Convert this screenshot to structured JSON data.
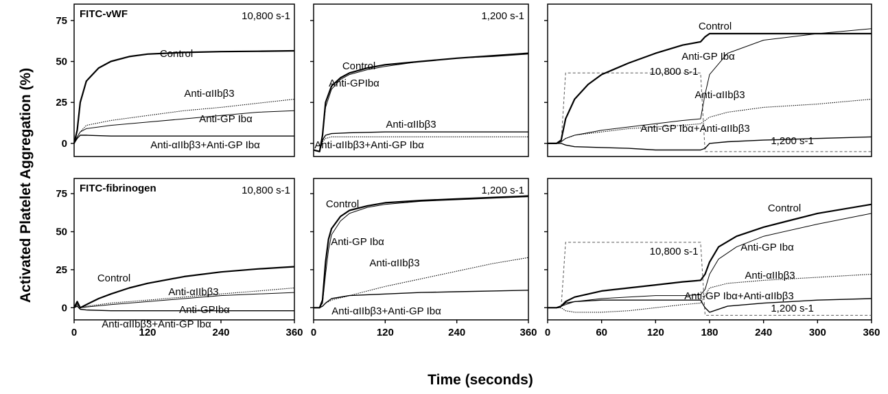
{
  "figure": {
    "ylabel": "Activated Platelet Aggregation (%)",
    "xlabel": "Time (seconds)"
  },
  "chart_data": [
    {
      "type": "line",
      "title": "FITC-vWF",
      "shear_label": "10,800 s-1",
      "xlim": [
        0,
        360
      ],
      "ylim": [
        -8,
        85
      ],
      "xticks": [],
      "yticks": [
        "0",
        "25",
        "50",
        "75"
      ],
      "grid": false,
      "series": [
        {
          "name": "Control",
          "weight": "bold",
          "x": [
            0,
            5,
            10,
            20,
            40,
            60,
            90,
            120,
            180,
            240,
            300,
            360
          ],
          "y": [
            0,
            8,
            25,
            38,
            46,
            50,
            53,
            54.5,
            55.5,
            56,
            56.2,
            56.5
          ]
        },
        {
          "name": "Anti-αIIbβ3",
          "weight": "dotted",
          "x": [
            0,
            5,
            10,
            20,
            60,
            120,
            180,
            240,
            300,
            360
          ],
          "y": [
            0,
            4,
            7,
            11,
            14,
            17,
            20,
            22,
            24.5,
            27
          ]
        },
        {
          "name": "Anti-GP Ibα",
          "weight": "thin",
          "x": [
            0,
            5,
            10,
            20,
            60,
            120,
            180,
            240,
            300,
            360
          ],
          "y": [
            0,
            4,
            7,
            9,
            11,
            13,
            15,
            17,
            19,
            20
          ]
        },
        {
          "name": "Anti-αIIbβ3+Anti-GP Ibα",
          "weight": "medium",
          "x": [
            0,
            5,
            10,
            20,
            60,
            120,
            180,
            240,
            300,
            360
          ],
          "y": [
            0,
            3,
            5,
            5,
            4.5,
            4.5,
            4.5,
            4.5,
            4.5,
            4.5
          ]
        }
      ]
    },
    {
      "type": "line",
      "title": "",
      "shear_label": "1,200 s-1",
      "xlim": [
        0,
        360
      ],
      "ylim": [
        -8,
        85
      ],
      "xticks": [],
      "yticks": [],
      "grid": false,
      "series": [
        {
          "name": "Control",
          "weight": "bold",
          "x": [
            0,
            10,
            15,
            20,
            30,
            45,
            60,
            90,
            120,
            180,
            240,
            300,
            360
          ],
          "y": [
            -4,
            -5,
            5,
            25,
            35,
            40,
            43,
            46,
            48,
            50,
            52,
            53.5,
            55
          ]
        },
        {
          "name": "Anti-GPIbα",
          "weight": "thin",
          "x": [
            0,
            10,
            15,
            20,
            30,
            45,
            60,
            90,
            120,
            180,
            240,
            300,
            360
          ],
          "y": [
            -4,
            -5,
            5,
            22,
            33,
            39,
            42,
            45,
            47,
            50,
            52,
            53,
            54.5
          ]
        },
        {
          "name": "Anti-αIIbβ3",
          "weight": "medium",
          "x": [
            0,
            10,
            15,
            20,
            30,
            60,
            120,
            180,
            240,
            300,
            360
          ],
          "y": [
            -4,
            -5,
            2,
            5,
            6,
            6.5,
            7,
            7,
            7,
            7,
            7
          ]
        },
        {
          "name": "Anti-αIIbβ3+Anti-GP Ibα",
          "weight": "dotted",
          "x": [
            0,
            10,
            15,
            20,
            30,
            60,
            120,
            180,
            240,
            300,
            360
          ],
          "y": [
            -4,
            -5,
            1,
            3,
            4,
            4,
            4,
            4,
            4,
            4,
            4
          ]
        }
      ]
    },
    {
      "type": "line",
      "title": "",
      "shear_label": "",
      "xlim": [
        0,
        360
      ],
      "ylim": [
        -8,
        85
      ],
      "xticks": [],
      "yticks": [],
      "grid": false,
      "annotations": {
        "upper_label": "10,800 s-1",
        "lower_label": "1,200 s-1"
      },
      "shear_profile": {
        "x": [
          0,
          15,
          20,
          170,
          175,
          360
        ],
        "y": [
          0,
          0,
          43,
          43,
          -5,
          -5
        ]
      },
      "series": [
        {
          "name": "Control",
          "weight": "bold",
          "x": [
            0,
            10,
            15,
            20,
            30,
            45,
            60,
            90,
            120,
            150,
            170,
            175,
            180,
            200,
            240,
            300,
            360
          ],
          "y": [
            0,
            0,
            2,
            15,
            27,
            36,
            42,
            49,
            55,
            60,
            62,
            65,
            67,
            67,
            67,
            67,
            67
          ]
        },
        {
          "name": "Anti-GP Ibα",
          "weight": "thin",
          "x": [
            0,
            10,
            15,
            20,
            30,
            60,
            90,
            120,
            150,
            170,
            175,
            180,
            200,
            240,
            300,
            360
          ],
          "y": [
            0,
            0,
            1,
            3,
            5,
            8,
            10,
            12,
            14,
            15,
            30,
            42,
            55,
            63,
            67,
            70
          ]
        },
        {
          "name": "Anti-αIIbβ3",
          "weight": "dotted",
          "x": [
            0,
            10,
            15,
            20,
            30,
            60,
            90,
            120,
            150,
            170,
            175,
            180,
            200,
            240,
            300,
            360
          ],
          "y": [
            0,
            0,
            1,
            3,
            5,
            7,
            9,
            10,
            11,
            12,
            14,
            16,
            19,
            22,
            24,
            27
          ]
        },
        {
          "name": "Anti-GP Ibα+Anti-αIIbβ3",
          "weight": "medium",
          "x": [
            0,
            10,
            15,
            20,
            30,
            60,
            90,
            120,
            150,
            170,
            175,
            180,
            200,
            240,
            300,
            360
          ],
          "y": [
            0,
            0,
            0,
            -1,
            -2,
            -2.5,
            -3,
            -4,
            -4,
            -4,
            -3,
            0,
            1,
            2,
            3,
            4
          ]
        }
      ]
    },
    {
      "type": "line",
      "title": "FITC-fibrinogen",
      "shear_label": "10,800 s-1",
      "xlim": [
        0,
        360
      ],
      "ylim": [
        -8,
        85
      ],
      "xticks": [
        "0",
        "120",
        "240",
        "360"
      ],
      "yticks": [
        "0",
        "25",
        "50",
        "75"
      ],
      "grid": false,
      "series": [
        {
          "name": "Control",
          "weight": "bold",
          "x": [
            0,
            5,
            10,
            20,
            40,
            60,
            90,
            120,
            180,
            240,
            300,
            360
          ],
          "y": [
            0,
            4,
            0,
            2,
            6,
            9,
            13,
            16,
            20.5,
            23.5,
            25.5,
            27
          ]
        },
        {
          "name": "Anti-αIIbβ3",
          "weight": "dotted",
          "x": [
            0,
            5,
            10,
            20,
            60,
            120,
            180,
            240,
            300,
            360
          ],
          "y": [
            0,
            3,
            0,
            1,
            3,
            5,
            7,
            9,
            11,
            13
          ]
        },
        {
          "name": "Anti-GPIbα",
          "weight": "thin",
          "x": [
            0,
            5,
            10,
            20,
            60,
            120,
            180,
            240,
            300,
            360
          ],
          "y": [
            0,
            2,
            0,
            0.5,
            2,
            4,
            6,
            8,
            9,
            10
          ]
        },
        {
          "name": "Anti-αIIbβ3+Anti-GP Ibα",
          "weight": "medium",
          "x": [
            0,
            5,
            10,
            20,
            60,
            120,
            180,
            240,
            300,
            360
          ],
          "y": [
            0,
            1,
            -1,
            -1.5,
            -2,
            -2,
            -2,
            -2,
            -2,
            -2
          ]
        }
      ]
    },
    {
      "type": "line",
      "title": "",
      "shear_label": "1,200 s-1",
      "xlim": [
        0,
        360
      ],
      "ylim": [
        -8,
        85
      ],
      "xticks": [
        "0",
        "120",
        "240",
        "360"
      ],
      "yticks": [],
      "grid": false,
      "series": [
        {
          "name": "Control",
          "weight": "bold",
          "x": [
            0,
            10,
            15,
            20,
            25,
            30,
            45,
            60,
            90,
            120,
            180,
            240,
            300,
            360
          ],
          "y": [
            0,
            0,
            5,
            30,
            45,
            52,
            60,
            64,
            67,
            69,
            70.5,
            71.5,
            72.5,
            73.5
          ]
        },
        {
          "name": "Anti-GP Ibα",
          "weight": "thin",
          "x": [
            0,
            10,
            15,
            20,
            25,
            30,
            45,
            60,
            90,
            120,
            180,
            240,
            300,
            360
          ],
          "y": [
            0,
            0,
            3,
            22,
            38,
            48,
            57,
            62,
            66,
            68,
            70,
            71,
            72,
            73
          ]
        },
        {
          "name": "Anti-αIIbβ3",
          "weight": "dotted",
          "x": [
            0,
            10,
            15,
            20,
            30,
            60,
            90,
            120,
            180,
            240,
            300,
            360
          ],
          "y": [
            0,
            0,
            1,
            3,
            5,
            8,
            11,
            14,
            19,
            24,
            29,
            33
          ]
        },
        {
          "name": "Anti-αIIbβ3+Anti-GP Ibα",
          "weight": "medium",
          "x": [
            0,
            10,
            15,
            20,
            30,
            60,
            120,
            180,
            240,
            300,
            360
          ],
          "y": [
            0,
            0,
            1,
            3,
            6,
            8,
            9,
            10,
            10.5,
            11,
            11.5
          ]
        }
      ]
    },
    {
      "type": "line",
      "title": "",
      "shear_label": "",
      "xlim": [
        0,
        360
      ],
      "ylim": [
        -8,
        85
      ],
      "xticks": [
        "0",
        "60",
        "120",
        "180",
        "240",
        "300",
        "360"
      ],
      "yticks": [],
      "grid": false,
      "annotations": {
        "upper_label": "10,800 s-1",
        "lower_label": "1,200 s-1"
      },
      "shear_profile": {
        "x": [
          0,
          15,
          20,
          170,
          175,
          360
        ],
        "y": [
          0,
          0,
          43,
          43,
          -5,
          -5
        ]
      },
      "series": [
        {
          "name": "Control",
          "weight": "bold",
          "x": [
            0,
            10,
            15,
            20,
            30,
            60,
            90,
            120,
            150,
            170,
            175,
            180,
            190,
            210,
            240,
            300,
            360
          ],
          "y": [
            0,
            0,
            1,
            4,
            7,
            11,
            13,
            15,
            17,
            18,
            22,
            30,
            40,
            47,
            53,
            62,
            68
          ]
        },
        {
          "name": "Anti-GP Ibα",
          "weight": "thin",
          "x": [
            0,
            10,
            15,
            20,
            30,
            60,
            90,
            120,
            150,
            170,
            175,
            180,
            190,
            210,
            240,
            300,
            360
          ],
          "y": [
            0,
            0,
            1,
            2,
            4,
            6,
            7,
            8,
            8,
            8.5,
            12,
            22,
            32,
            40,
            47,
            55,
            62
          ]
        },
        {
          "name": "Anti-αIIbβ3",
          "weight": "dotted",
          "x": [
            0,
            10,
            15,
            20,
            30,
            60,
            90,
            120,
            150,
            170,
            175,
            180,
            200,
            240,
            300,
            360
          ],
          "y": [
            0,
            0,
            0,
            -2,
            -3,
            -3,
            -2,
            0,
            2,
            3,
            8,
            13,
            16,
            18,
            20,
            22
          ]
        },
        {
          "name": "Anti-GP Ibα+Anti-αIIbβ3",
          "weight": "medium",
          "x": [
            0,
            10,
            15,
            20,
            30,
            60,
            90,
            120,
            150,
            170,
            175,
            180,
            200,
            240,
            300,
            360
          ],
          "y": [
            0,
            0,
            1,
            3,
            4,
            5,
            5,
            5,
            5,
            5,
            0,
            -3,
            1,
            3,
            5,
            6
          ]
        }
      ]
    }
  ],
  "labels": [
    [
      {
        "text": "Control"
      },
      {
        "text": "Anti-αIIbβ3"
      },
      {
        "text": "Anti-GP Ibα"
      },
      {
        "text": "Anti-αIIbβ3+Anti-GP Ibα"
      }
    ],
    [
      {
        "text": "Control"
      },
      {
        "text": "Anti-GPIbα"
      },
      {
        "text": "Anti-αIIbβ3"
      },
      {
        "text": "Anti-αIIbβ3+Anti-GP Ibα"
      }
    ],
    [
      {
        "text": "Control"
      },
      {
        "text": "Anti-GP Ibα"
      },
      {
        "text": "Anti-αIIbβ3"
      },
      {
        "text": "Anti-GP Ibα+Anti-αIIbβ3"
      }
    ],
    [
      {
        "text": "Control"
      },
      {
        "text": "Anti-αIIbβ3"
      },
      {
        "text": "Anti-GPIbα"
      },
      {
        "text": "Anti-αIIbβ3+Anti-GP Ibα"
      }
    ],
    [
      {
        "text": "Control"
      },
      {
        "text": "Anti-GP Ibα"
      },
      {
        "text": "Anti-αIIbβ3"
      },
      {
        "text": "Anti-αIIbβ3+Anti-GP Ibα"
      }
    ],
    [
      {
        "text": "Control"
      },
      {
        "text": "Anti-GP Ibα"
      },
      {
        "text": "Anti-αIIbβ3"
      },
      {
        "text": "Anti-GP Ibα+Anti-αIIbβ3"
      }
    ]
  ]
}
